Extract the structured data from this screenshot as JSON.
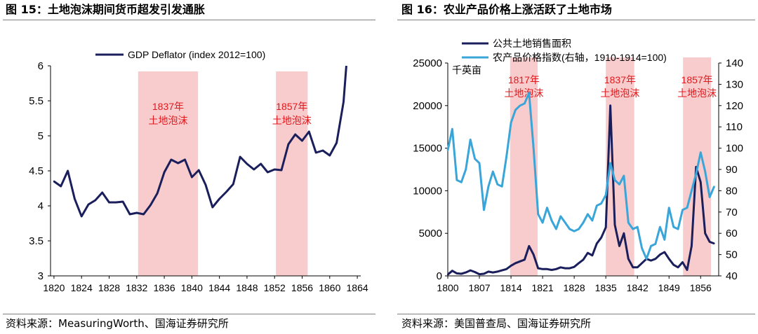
{
  "left_figure": {
    "title": "图 15：土地泡沫期间货币超发引发通胀",
    "source": "资料来源：MeasuringWorth、国海证券研究所"
  },
  "right_figure": {
    "title": "图 16：农业产品价格上涨活跃了土地市场",
    "source": "资料来源：美国普查局、国海证券研究所"
  },
  "colors": {
    "navy": "#1a1f5c",
    "sky": "#3aa5d8",
    "band": "#f8cccc",
    "annotation": "#e0191e"
  },
  "chart_data": [
    {
      "type": "line",
      "legend": [
        "GDP Deflator (index 2012=100)"
      ],
      "xlim": [
        1819.5,
        1864.5
      ],
      "ylim": [
        3,
        6
      ],
      "x_ticks": [
        1820,
        1824,
        1828,
        1832,
        1836,
        1840,
        1844,
        1848,
        1852,
        1856,
        1860,
        1864
      ],
      "x_tick_labels": [
        "1820",
        "1824",
        "1828",
        "1832",
        "1836",
        "1840",
        "1844",
        "1848",
        "1852",
        "1856",
        "1860",
        "1864"
      ],
      "y_ticks": [
        3,
        3.5,
        4,
        4.5,
        5,
        5.5,
        6
      ],
      "y_tick_labels": [
        "3",
        "3.5",
        "4",
        "4.5",
        "5",
        "5.5",
        "6"
      ],
      "bands": [
        {
          "start": 1832.2,
          "end": 1840.9,
          "label_line1": "1837年",
          "label_line2": "土地泡沫"
        },
        {
          "start": 1852.2,
          "end": 1856.8,
          "label_line1": "1857年",
          "label_line2": "土地泡沫"
        }
      ],
      "series": [
        {
          "name": "GDP Deflator (index 2012=100)",
          "x": [
            1820,
            1821,
            1822,
            1823,
            1824,
            1825,
            1826,
            1827,
            1828,
            1829,
            1830,
            1831,
            1832,
            1833,
            1834,
            1835,
            1836,
            1837,
            1838,
            1839,
            1840,
            1841,
            1842,
            1843,
            1844,
            1845,
            1846,
            1847,
            1848,
            1849,
            1850,
            1851,
            1852,
            1853,
            1854,
            1855,
            1856,
            1857,
            1858,
            1859,
            1860,
            1861,
            1862
          ],
          "values": [
            4.35,
            4.28,
            4.5,
            4.1,
            3.85,
            4.02,
            4.08,
            4.19,
            4.05,
            4.05,
            4.06,
            3.88,
            3.9,
            3.88,
            4.01,
            4.18,
            4.48,
            4.66,
            4.61,
            4.66,
            4.41,
            4.51,
            4.3,
            3.98,
            4.1,
            4.2,
            4.31,
            4.7,
            4.6,
            4.52,
            4.6,
            4.48,
            4.52,
            4.51,
            4.88,
            5.02,
            4.93,
            5.06,
            4.76,
            4.79,
            4.72,
            4.9,
            5.48
          ]
        }
      ]
    },
    {
      "type": "line",
      "legend": [
        "公共土地销售面积",
        "农产品价格指数(右轴，1910-1914=100)"
      ],
      "unit_label": "千英亩",
      "xlim": [
        1800,
        1860
      ],
      "ylim": [
        0,
        25000
      ],
      "y2lim": [
        40,
        140
      ],
      "x_ticks": [
        1800,
        1807,
        1814,
        1821,
        1828,
        1835,
        1842,
        1849,
        1856
      ],
      "x_tick_labels": [
        "1800",
        "1807",
        "1814",
        "1821",
        "1828",
        "1835",
        "1842",
        "1849",
        "1856"
      ],
      "y_ticks": [
        0,
        5000,
        10000,
        15000,
        20000,
        25000
      ],
      "y_tick_labels": [
        "0",
        "5000",
        "10000",
        "15000",
        "20000",
        "25000"
      ],
      "y2_ticks": [
        40,
        50,
        60,
        70,
        80,
        90,
        100,
        110,
        120,
        130,
        140
      ],
      "y2_tick_labels": [
        "40",
        "50",
        "60",
        "70",
        "80",
        "90",
        "100",
        "110",
        "120",
        "130",
        "140"
      ],
      "bands": [
        {
          "start": 1813.8,
          "end": 1819.9,
          "label_line1": "1817年",
          "label_line2": "土地泡沫"
        },
        {
          "start": 1835.0,
          "end": 1841.3,
          "label_line1": "1837年",
          "label_line2": "土地泡沫"
        },
        {
          "start": 1852.1,
          "end": 1858.3,
          "label_line1": "1857年",
          "label_line2": "土地泡沫"
        }
      ],
      "series": [
        {
          "name": "公共土地销售面积",
          "axis": "left",
          "x": [
            1800,
            1801,
            1802,
            1803,
            1804,
            1805,
            1806,
            1807,
            1808,
            1809,
            1810,
            1811,
            1812,
            1813,
            1814,
            1815,
            1816,
            1817,
            1818,
            1819,
            1820,
            1821,
            1822,
            1823,
            1824,
            1825,
            1826,
            1827,
            1828,
            1829,
            1830,
            1831,
            1832,
            1833,
            1834,
            1835,
            1836,
            1837,
            1838,
            1839,
            1840,
            1841,
            1842,
            1843,
            1844,
            1845,
            1846,
            1847,
            1848,
            1849,
            1850,
            1851,
            1852,
            1853,
            1854,
            1855,
            1856,
            1857,
            1858,
            1859
          ],
          "values": [
            150,
            600,
            300,
            250,
            400,
            650,
            450,
            200,
            250,
            500,
            400,
            500,
            650,
            800,
            1200,
            1500,
            1700,
            1900,
            3500,
            2500,
            900,
            800,
            800,
            700,
            800,
            1000,
            900,
            900,
            1050,
            1500,
            1900,
            2700,
            2400,
            3800,
            4500,
            5700,
            20000,
            6000,
            3500,
            5000,
            2000,
            1000,
            1000,
            1500,
            2000,
            1800,
            2000,
            2500,
            2800,
            2000,
            1300,
            1000,
            1600,
            700,
            3500,
            12800,
            11000,
            5000,
            4000,
            3800
          ]
        },
        {
          "name": "农产品价格指数(右轴，1910-1914=100)",
          "axis": "right",
          "x": [
            1800,
            1801,
            1802,
            1803,
            1804,
            1805,
            1806,
            1807,
            1808,
            1809,
            1810,
            1811,
            1812,
            1813,
            1814,
            1815,
            1816,
            1817,
            1818,
            1819,
            1820,
            1821,
            1822,
            1823,
            1824,
            1825,
            1826,
            1827,
            1828,
            1829,
            1830,
            1831,
            1832,
            1833,
            1834,
            1835,
            1836,
            1837,
            1838,
            1839,
            1840,
            1841,
            1842,
            1843,
            1844,
            1845,
            1846,
            1847,
            1848,
            1849,
            1850,
            1851,
            1852,
            1853,
            1854,
            1855,
            1856,
            1857,
            1858,
            1859
          ],
          "values": [
            99,
            109,
            85,
            84,
            90,
            104,
            95,
            93,
            71,
            82,
            89,
            83,
            82,
            96,
            112,
            118,
            120,
            121,
            126,
            100,
            69,
            65,
            72,
            66,
            62,
            68,
            65,
            62,
            61,
            62,
            65,
            69,
            66,
            73,
            74,
            78,
            93,
            85,
            83,
            87,
            65,
            62,
            63,
            53,
            48,
            54,
            55,
            63,
            57,
            72,
            63,
            62,
            71,
            72,
            80,
            88,
            98,
            89,
            77,
            82
          ]
        }
      ]
    }
  ]
}
